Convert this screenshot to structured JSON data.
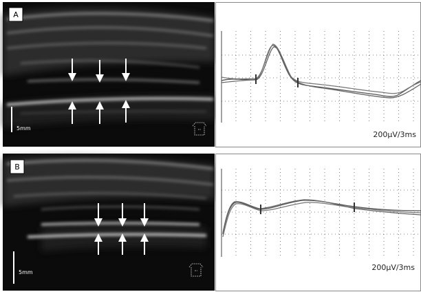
{
  "panels": [
    {
      "label": "A",
      "scale_bar": "5mm",
      "calibration": "200µV/3ms"
    },
    {
      "label": "B",
      "scale_bar": "5mm",
      "calibration": "200µV/3ms"
    }
  ]
}
